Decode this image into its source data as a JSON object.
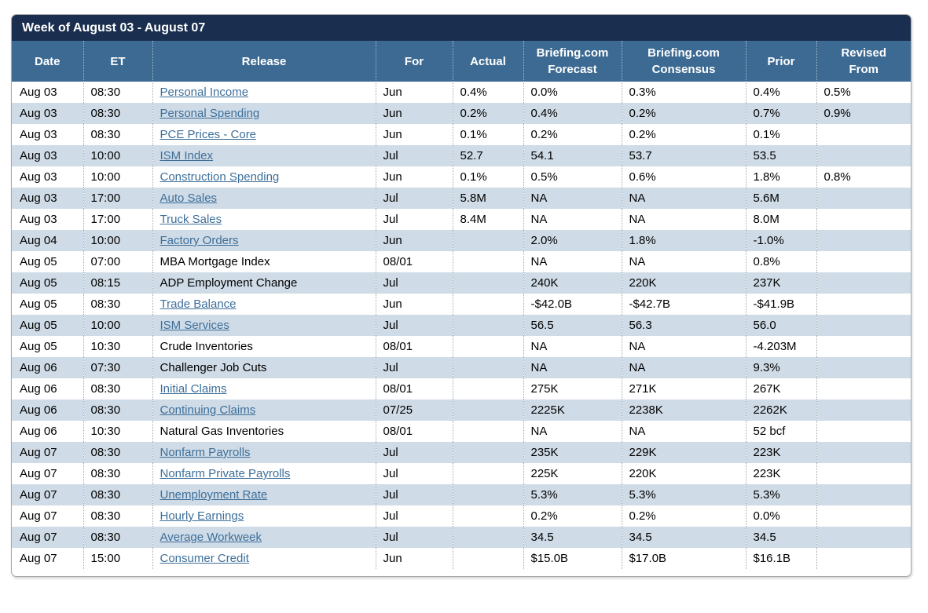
{
  "title": "Week of August 03 - August 07",
  "colors": {
    "title_bar_bg": "#1a2e4f",
    "header_bg": "#3c6a92",
    "row_alt_bg": "#cfdbe6",
    "link_color": "#3d6f9a",
    "card_border": "#a9a9a9"
  },
  "table": {
    "columns": [
      {
        "key": "date",
        "label": "Date"
      },
      {
        "key": "et",
        "label": "ET"
      },
      {
        "key": "release",
        "label": "Release"
      },
      {
        "key": "for",
        "label": "For"
      },
      {
        "key": "actual",
        "label": "Actual"
      },
      {
        "key": "forecast",
        "label": "Briefing.com\nForecast"
      },
      {
        "key": "consensus",
        "label": "Briefing.com\nConsensus"
      },
      {
        "key": "prior",
        "label": "Prior"
      },
      {
        "key": "revised",
        "label": "Revised\nFrom"
      }
    ],
    "rows": [
      {
        "date": "Aug 03",
        "et": "08:30",
        "release": "Personal Income",
        "is_link": true,
        "for": "Jun",
        "actual": "0.4%",
        "forecast": "0.0%",
        "consensus": "0.3%",
        "prior": "0.4%",
        "revised": "0.5%"
      },
      {
        "date": "Aug 03",
        "et": "08:30",
        "release": "Personal Spending",
        "is_link": true,
        "for": "Jun",
        "actual": "0.2%",
        "forecast": "0.4%",
        "consensus": "0.2%",
        "prior": "0.7%",
        "revised": "0.9%"
      },
      {
        "date": "Aug 03",
        "et": "08:30",
        "release": "PCE Prices - Core",
        "is_link": true,
        "for": "Jun",
        "actual": "0.1%",
        "forecast": "0.2%",
        "consensus": "0.2%",
        "prior": "0.1%",
        "revised": ""
      },
      {
        "date": "Aug 03",
        "et": "10:00",
        "release": "ISM Index",
        "is_link": true,
        "for": "Jul",
        "actual": "52.7",
        "forecast": "54.1",
        "consensus": "53.7",
        "prior": "53.5",
        "revised": ""
      },
      {
        "date": "Aug 03",
        "et": "10:00",
        "release": "Construction Spending",
        "is_link": true,
        "for": "Jun",
        "actual": "0.1%",
        "forecast": "0.5%",
        "consensus": "0.6%",
        "prior": "1.8%",
        "revised": "0.8%"
      },
      {
        "date": "Aug 03",
        "et": "17:00",
        "release": "Auto Sales",
        "is_link": true,
        "for": "Jul",
        "actual": "5.8M",
        "forecast": "NA",
        "consensus": "NA",
        "prior": "5.6M",
        "revised": ""
      },
      {
        "date": "Aug 03",
        "et": "17:00",
        "release": "Truck Sales",
        "is_link": true,
        "for": "Jul",
        "actual": "8.4M",
        "forecast": "NA",
        "consensus": "NA",
        "prior": "8.0M",
        "revised": ""
      },
      {
        "date": "Aug 04",
        "et": "10:00",
        "release": "Factory Orders",
        "is_link": true,
        "for": "Jun",
        "actual": "",
        "forecast": "2.0%",
        "consensus": "1.8%",
        "prior": "-1.0%",
        "revised": ""
      },
      {
        "date": "Aug 05",
        "et": "07:00",
        "release": "MBA Mortgage Index",
        "is_link": false,
        "for": "08/01",
        "actual": "",
        "forecast": "NA",
        "consensus": "NA",
        "prior": "0.8%",
        "revised": ""
      },
      {
        "date": "Aug 05",
        "et": "08:15",
        "release": "ADP Employment Change",
        "is_link": false,
        "for": "Jul",
        "actual": "",
        "forecast": "240K",
        "consensus": "220K",
        "prior": "237K",
        "revised": ""
      },
      {
        "date": "Aug 05",
        "et": "08:30",
        "release": "Trade Balance",
        "is_link": true,
        "for": "Jun",
        "actual": "",
        "forecast": "-$42.0B",
        "consensus": "-$42.7B",
        "prior": "-$41.9B",
        "revised": ""
      },
      {
        "date": "Aug 05",
        "et": "10:00",
        "release": "ISM Services",
        "is_link": true,
        "for": "Jul",
        "actual": "",
        "forecast": "56.5",
        "consensus": "56.3",
        "prior": "56.0",
        "revised": ""
      },
      {
        "date": "Aug 05",
        "et": "10:30",
        "release": "Crude Inventories",
        "is_link": false,
        "for": "08/01",
        "actual": "",
        "forecast": "NA",
        "consensus": "NA",
        "prior": "-4.203M",
        "revised": ""
      },
      {
        "date": "Aug 06",
        "et": "07:30",
        "release": "Challenger Job Cuts",
        "is_link": false,
        "for": "Jul",
        "actual": "",
        "forecast": "NA",
        "consensus": "NA",
        "prior": "9.3%",
        "revised": ""
      },
      {
        "date": "Aug 06",
        "et": "08:30",
        "release": "Initial Claims",
        "is_link": true,
        "for": "08/01",
        "actual": "",
        "forecast": "275K",
        "consensus": "271K",
        "prior": "267K",
        "revised": ""
      },
      {
        "date": "Aug 06",
        "et": "08:30",
        "release": "Continuing Claims",
        "is_link": true,
        "for": "07/25",
        "actual": "",
        "forecast": "2225K",
        "consensus": "2238K",
        "prior": "2262K",
        "revised": ""
      },
      {
        "date": "Aug 06",
        "et": "10:30",
        "release": "Natural Gas Inventories",
        "is_link": false,
        "for": "08/01",
        "actual": "",
        "forecast": "NA",
        "consensus": "NA",
        "prior": "52 bcf",
        "revised": ""
      },
      {
        "date": "Aug 07",
        "et": "08:30",
        "release": "Nonfarm Payrolls",
        "is_link": true,
        "for": "Jul",
        "actual": "",
        "forecast": "235K",
        "consensus": "229K",
        "prior": "223K",
        "revised": ""
      },
      {
        "date": "Aug 07",
        "et": "08:30",
        "release": "Nonfarm Private Payrolls",
        "is_link": true,
        "for": "Jul",
        "actual": "",
        "forecast": "225K",
        "consensus": "220K",
        "prior": "223K",
        "revised": ""
      },
      {
        "date": "Aug 07",
        "et": "08:30",
        "release": "Unemployment Rate",
        "is_link": true,
        "for": "Jul",
        "actual": "",
        "forecast": "5.3%",
        "consensus": "5.3%",
        "prior": "5.3%",
        "revised": ""
      },
      {
        "date": "Aug 07",
        "et": "08:30",
        "release": "Hourly Earnings",
        "is_link": true,
        "for": "Jul",
        "actual": "",
        "forecast": "0.2%",
        "consensus": "0.2%",
        "prior": "0.0%",
        "revised": ""
      },
      {
        "date": "Aug 07",
        "et": "08:30",
        "release": "Average Workweek",
        "is_link": true,
        "for": "Jul",
        "actual": "",
        "forecast": "34.5",
        "consensus": "34.5",
        "prior": "34.5",
        "revised": ""
      },
      {
        "date": "Aug 07",
        "et": "15:00",
        "release": "Consumer Credit",
        "is_link": true,
        "for": "Jun",
        "actual": "",
        "forecast": "$15.0B",
        "consensus": "$17.0B",
        "prior": "$16.1B",
        "revised": ""
      }
    ]
  }
}
